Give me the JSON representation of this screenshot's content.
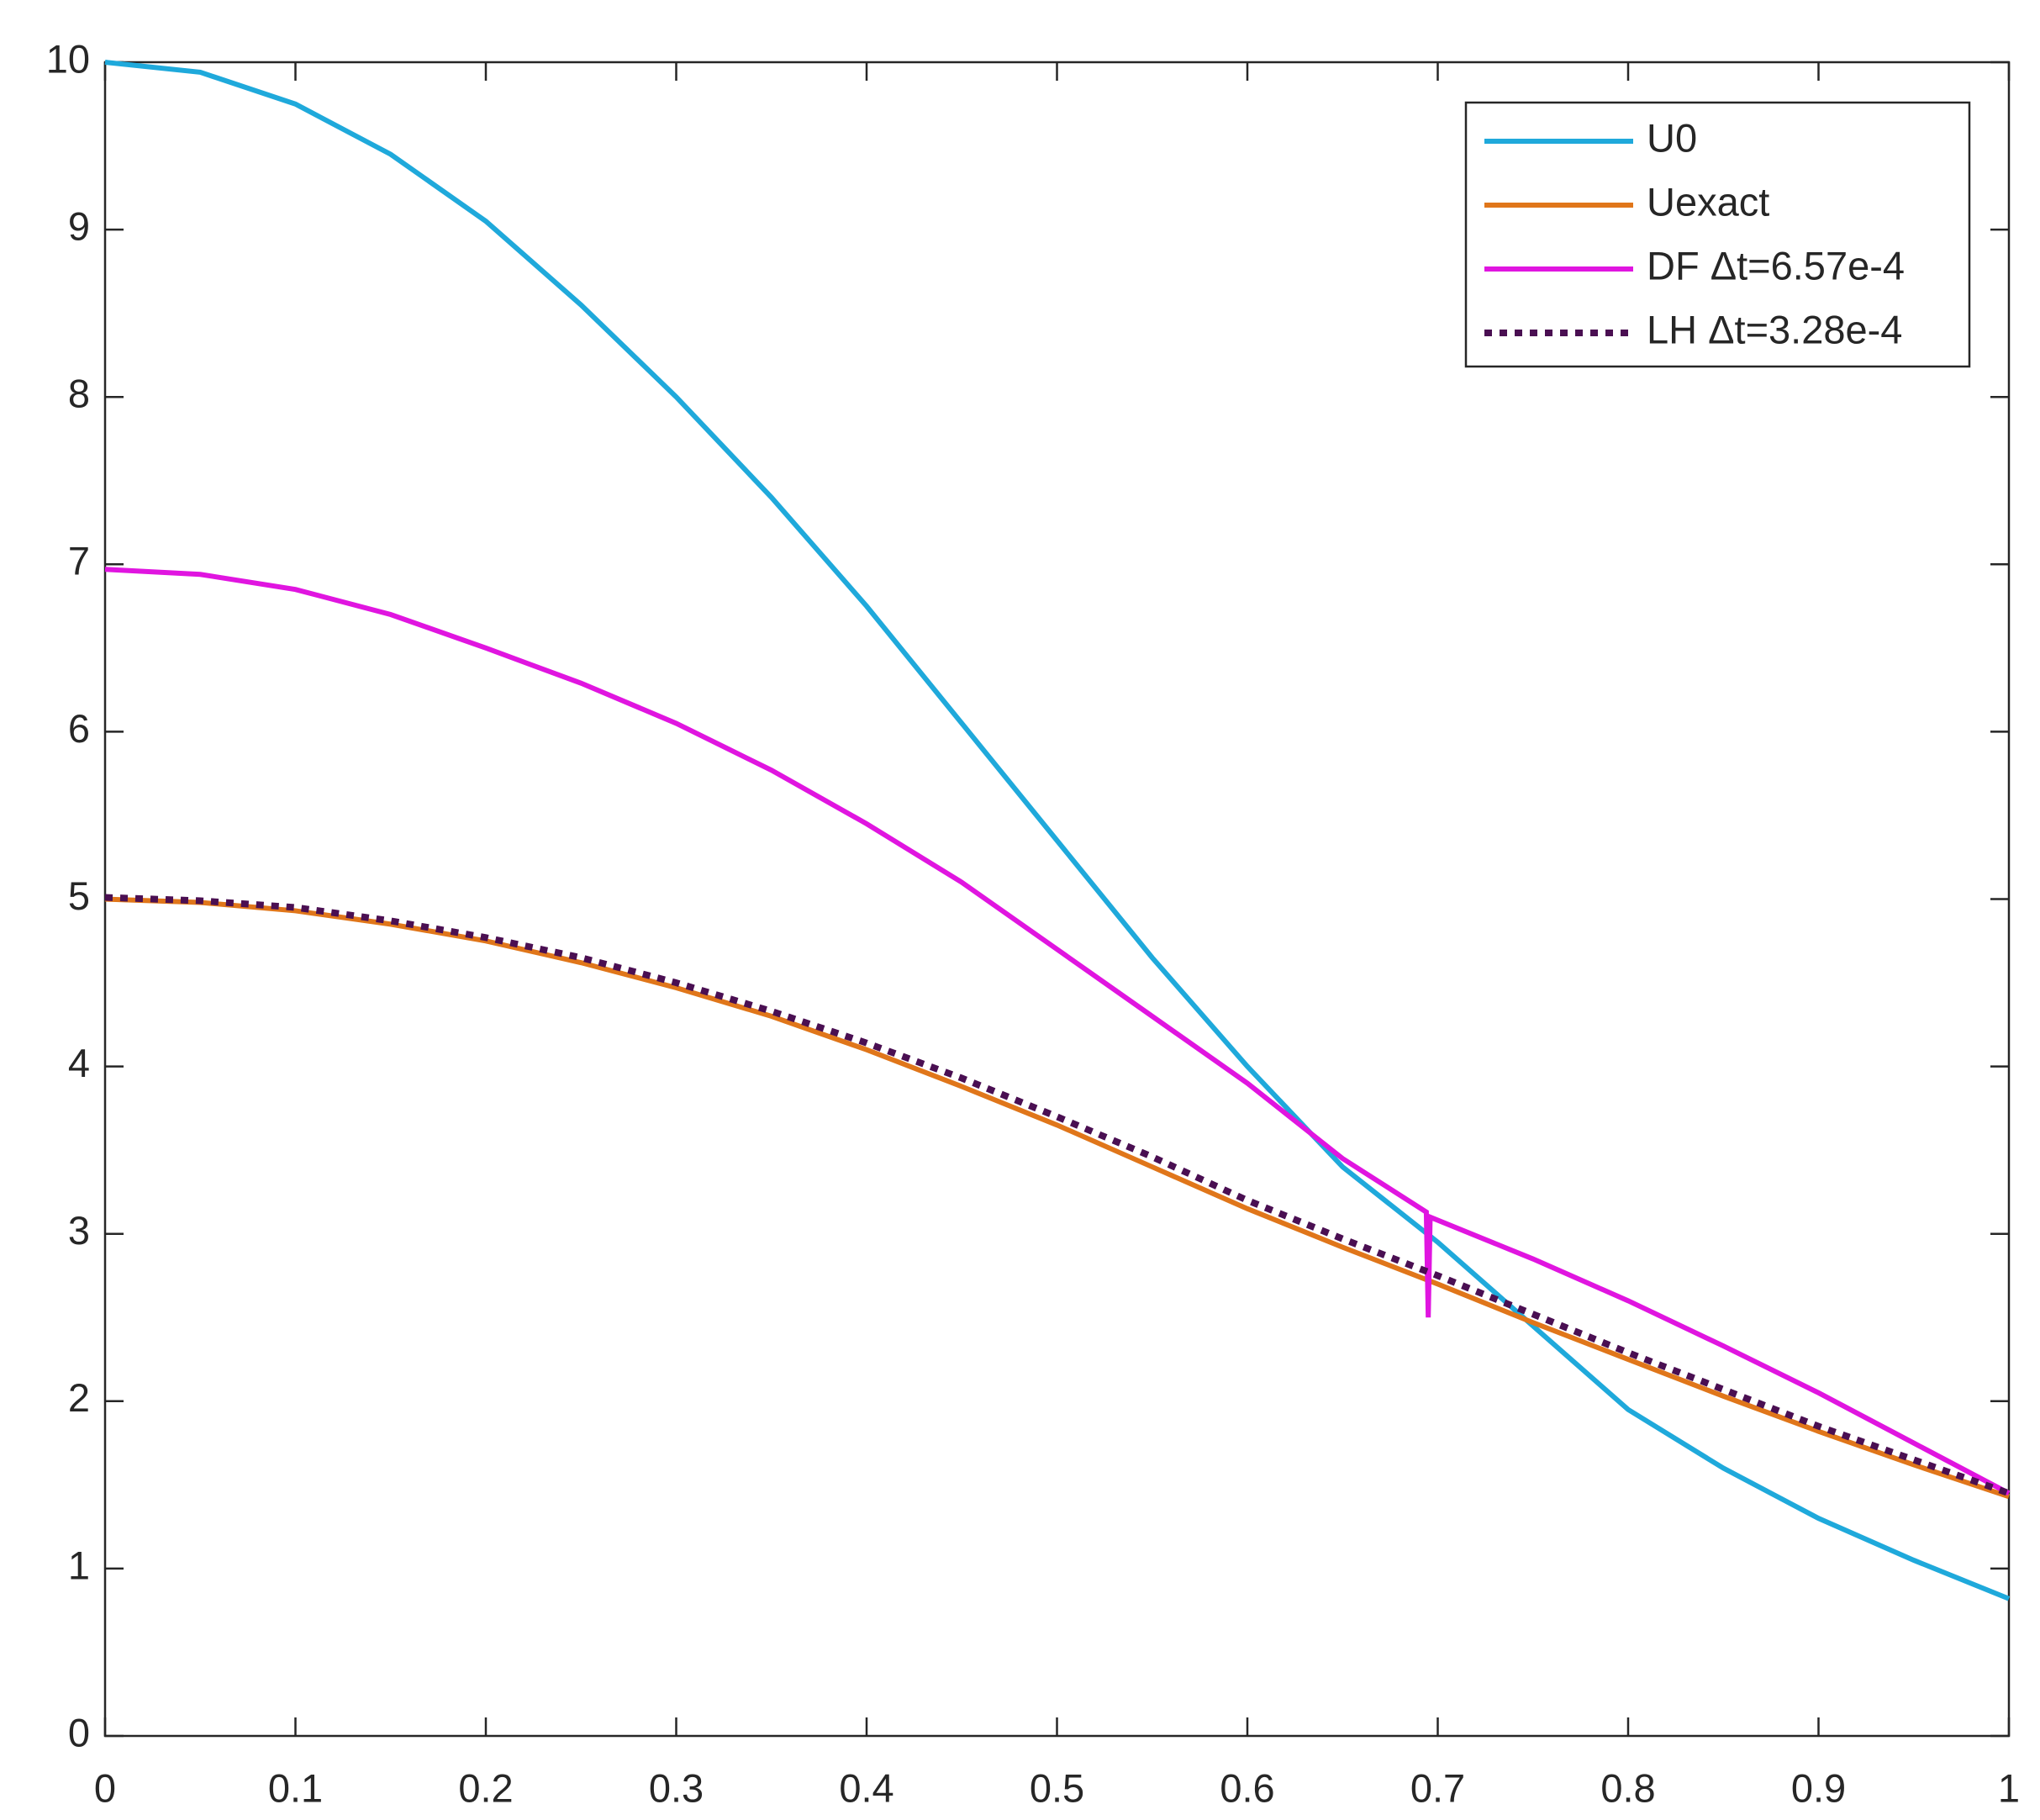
{
  "chart_data": {
    "type": "line",
    "xlim": [
      0,
      1
    ],
    "ylim": [
      0,
      10
    ],
    "xticks": [
      0,
      0.1,
      0.2,
      0.3,
      0.4,
      0.5,
      0.6,
      0.7,
      0.8,
      0.9,
      1
    ],
    "yticks": [
      0,
      1,
      2,
      3,
      4,
      5,
      6,
      7,
      8,
      9,
      10
    ],
    "legend": "upper right",
    "series": [
      {
        "name": "U0",
        "color": "#1fa9db",
        "style": "solid",
        "x": [
          0,
          0.05,
          0.1,
          0.15,
          0.2,
          0.25,
          0.3,
          0.35,
          0.4,
          0.45,
          0.5,
          0.55,
          0.6,
          0.65,
          0.7,
          0.75,
          0.8,
          0.85,
          0.9,
          0.95,
          1
        ],
        "values": [
          10,
          9.94,
          9.75,
          9.45,
          9.05,
          8.55,
          8.0,
          7.4,
          6.75,
          6.05,
          5.35,
          4.65,
          4.0,
          3.4,
          2.95,
          2.45,
          1.95,
          1.6,
          1.3,
          1.05,
          0.82
        ]
      },
      {
        "name": "Uexact",
        "color": "#e0761a",
        "style": "solid",
        "x": [
          0,
          0.05,
          0.1,
          0.15,
          0.2,
          0.25,
          0.3,
          0.35,
          0.4,
          0.45,
          0.5,
          0.55,
          0.6,
          0.65,
          0.7,
          0.75,
          0.8,
          0.85,
          0.9,
          0.95,
          1
        ],
        "values": [
          5,
          4.98,
          4.93,
          4.85,
          4.75,
          4.62,
          4.47,
          4.3,
          4.1,
          3.88,
          3.65,
          3.4,
          3.15,
          2.92,
          2.7,
          2.47,
          2.25,
          2.03,
          1.82,
          1.62,
          1.43
        ]
      },
      {
        "name": "DF Δt=6.57e-4",
        "color": "#e015e0",
        "style": "solid",
        "x": [
          0,
          0.05,
          0.1,
          0.15,
          0.2,
          0.25,
          0.3,
          0.35,
          0.4,
          0.45,
          0.5,
          0.55,
          0.6,
          0.65,
          0.694,
          0.695,
          0.696,
          0.75,
          0.8,
          0.85,
          0.9,
          0.95,
          1
        ],
        "values": [
          6.97,
          6.94,
          6.85,
          6.7,
          6.5,
          6.29,
          6.05,
          5.77,
          5.45,
          5.1,
          4.7,
          4.3,
          3.9,
          3.45,
          3.13,
          2.5,
          3.1,
          2.85,
          2.6,
          2.33,
          2.05,
          1.75,
          1.45
        ]
      },
      {
        "name": "LH Δt=3.28e-4",
        "color": "#4a0f52",
        "style": "dotted",
        "x": [
          0,
          0.05,
          0.1,
          0.15,
          0.2,
          0.25,
          0.3,
          0.35,
          0.4,
          0.45,
          0.5,
          0.55,
          0.6,
          0.65,
          0.7,
          0.75,
          0.8,
          0.85,
          0.9,
          0.95,
          1
        ],
        "values": [
          5.01,
          4.99,
          4.95,
          4.87,
          4.77,
          4.65,
          4.5,
          4.33,
          4.14,
          3.93,
          3.7,
          3.46,
          3.2,
          2.97,
          2.75,
          2.52,
          2.29,
          2.07,
          1.85,
          1.65,
          1.45
        ]
      }
    ]
  }
}
